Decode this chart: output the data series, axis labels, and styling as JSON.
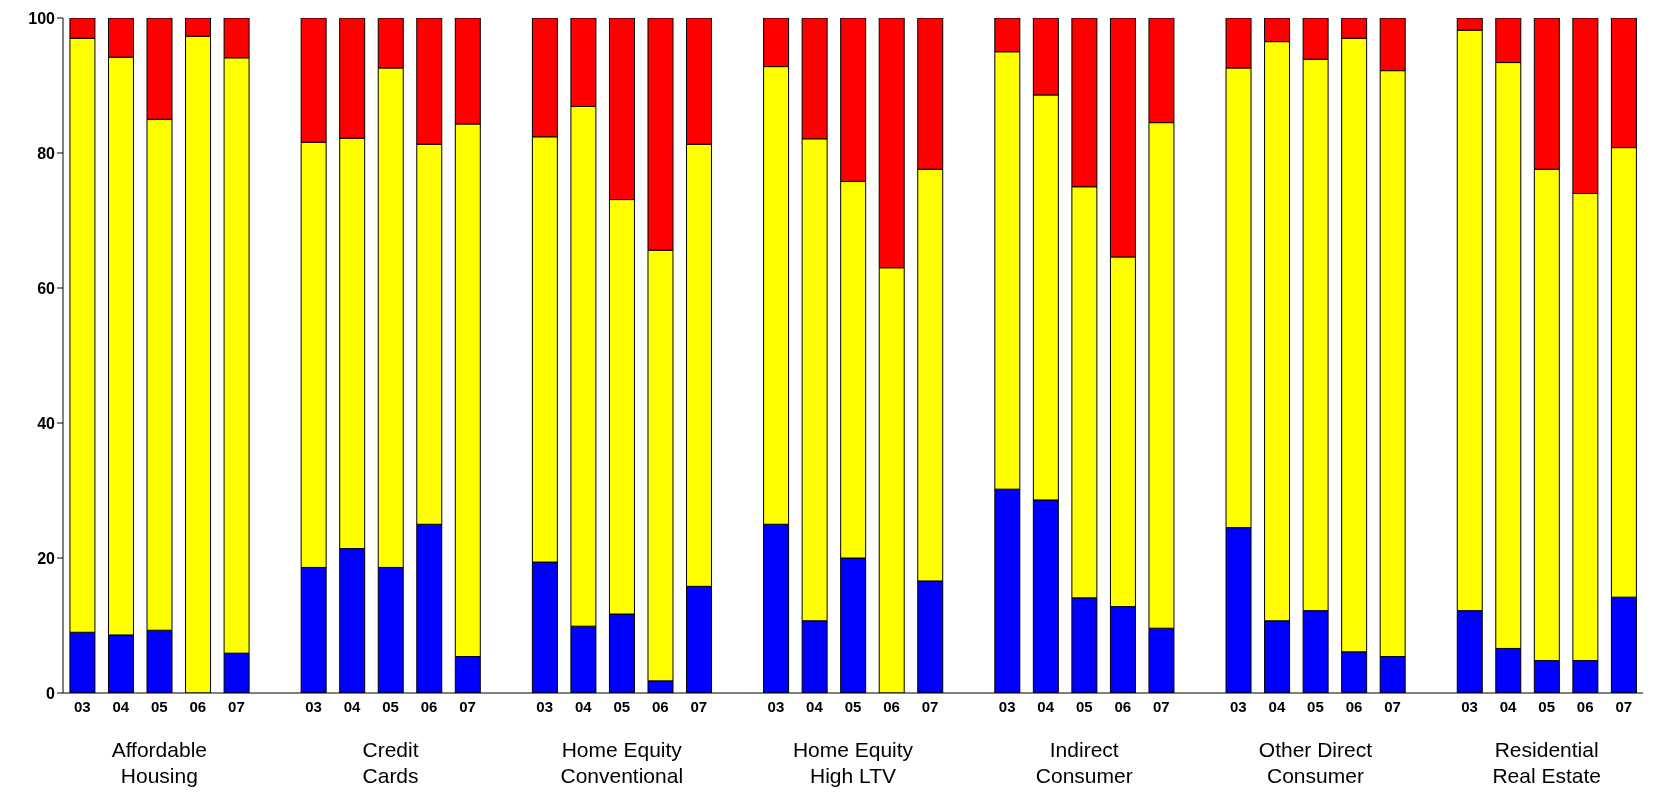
{
  "chart_data": {
    "type": "bar",
    "stacked": true,
    "categories": [
      "03",
      "04",
      "05",
      "06",
      "07",
      null,
      "03",
      "04",
      "05",
      "06",
      "07",
      null,
      "03",
      "04",
      "05",
      "06",
      "07",
      null,
      "03",
      "04",
      "05",
      "06",
      "07",
      null,
      "03",
      "04",
      "05",
      "06",
      "07",
      null,
      "03",
      "04",
      "05",
      "06",
      "07",
      null,
      "03",
      "04",
      "05",
      "06",
      "07"
    ],
    "series": [
      {
        "color": "#0000ff",
        "values": [
          9,
          8.6,
          9.3,
          0,
          5.9,
          null,
          18.6,
          21.4,
          18.6,
          25,
          5.4,
          null,
          19.4,
          9.9,
          11.7,
          1.8,
          15.8,
          null,
          25,
          10.7,
          20,
          0,
          16.6,
          null,
          30.2,
          28.6,
          14.1,
          12.8,
          9.6,
          null,
          24.5,
          10.7,
          12.2,
          6.1,
          5.4,
          null,
          12.2,
          6.6,
          4.8,
          4.8,
          14.2
        ]
      },
      {
        "color": "#ffff00",
        "values": [
          88,
          85.6,
          75.7,
          97.3,
          88.2,
          null,
          63,
          60.8,
          74,
          56.3,
          78.9,
          null,
          63,
          77,
          61.4,
          63.8,
          65.5,
          null,
          67.8,
          71.4,
          55.8,
          63,
          61,
          null,
          64.8,
          60,
          60.9,
          51.8,
          74.9,
          null,
          68.1,
          85.8,
          81.7,
          90.9,
          86.8,
          null,
          86,
          86.8,
          72.8,
          69.2,
          66.6
        ]
      },
      {
        "color": "#ff0000",
        "values": [
          3,
          5.8,
          15,
          2.7,
          5.9,
          null,
          18.4,
          17.8,
          7.4,
          18.7,
          15.7,
          null,
          17.6,
          13.1,
          26.9,
          34.4,
          18.7,
          null,
          7.2,
          17.9,
          24.2,
          37,
          22.4,
          null,
          5,
          11.4,
          25,
          35.4,
          15.5,
          null,
          7.4,
          3.5,
          6.1,
          3,
          7.8,
          null,
          1.8,
          6.6,
          22.4,
          26,
          19.2
        ]
      }
    ],
    "ylim": [
      0,
      100
    ],
    "yticks": [
      0,
      20,
      40,
      60,
      80,
      100
    ],
    "annotations": [
      "Affordable\nHousing",
      "Credit\nCards",
      "Home Equity\nConventional",
      "Home Equity\nHigh LTV",
      "Indirect\nConsumer",
      "Other Direct\nConsumer",
      "Residential\nReal Estate"
    ]
  }
}
